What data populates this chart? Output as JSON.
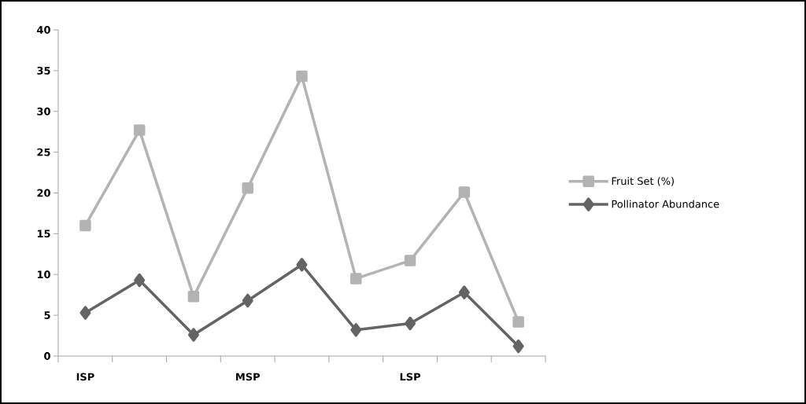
{
  "chart_data": {
    "type": "line",
    "categories": [
      "ISP",
      null,
      null,
      "MSP",
      null,
      null,
      "LSP",
      null,
      null
    ],
    "series": [
      {
        "name": "Fruit Set (%)",
        "color": "#b3b3b3",
        "marker": "square",
        "values": [
          16.0,
          27.7,
          7.3,
          20.6,
          34.3,
          9.5,
          11.7,
          20.1,
          4.2
        ]
      },
      {
        "name": "Pollinator Abundance",
        "color": "#646464",
        "marker": "diamond",
        "values": [
          5.3,
          9.3,
          2.6,
          6.8,
          11.2,
          3.2,
          4.0,
          7.8,
          1.2
        ]
      }
    ],
    "ylim": [
      0,
      40
    ],
    "yticks": [
      0,
      5,
      10,
      15,
      20,
      25,
      30,
      35,
      40
    ],
    "grid": false,
    "legend": "right",
    "line_style": "solid"
  }
}
